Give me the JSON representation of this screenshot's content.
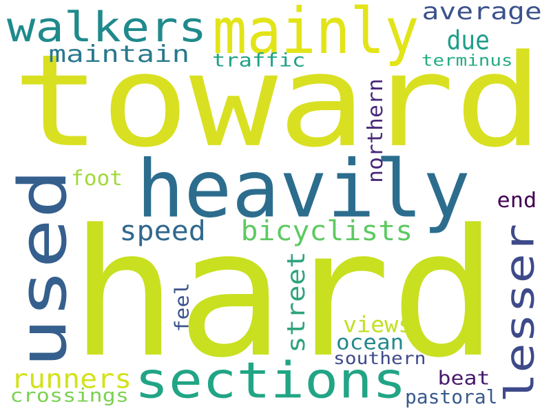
{
  "words": [
    {
      "id": "toward",
      "text": "toward",
      "color": "#d9e021",
      "rotated": false
    },
    {
      "id": "hard",
      "text": "hard",
      "color": "#c8e020",
      "rotated": false
    },
    {
      "id": "heavily",
      "text": "heavily",
      "color": "#2c6d8e",
      "rotated": false
    },
    {
      "id": "used",
      "text": "used",
      "color": "#355f8d",
      "rotated": true
    },
    {
      "id": "mainly",
      "text": "mainly",
      "color": "#e2e418",
      "rotated": false
    },
    {
      "id": "walkers",
      "text": "walkers",
      "color": "#1f8a8c",
      "rotated": false
    },
    {
      "id": "sections",
      "text": "sections",
      "color": "#21a585",
      "rotated": false
    },
    {
      "id": "lesser",
      "text": "lesser",
      "color": "#3e4a89",
      "rotated": true
    },
    {
      "id": "average",
      "text": "average",
      "color": "#3b528b",
      "rotated": false
    },
    {
      "id": "due",
      "text": "due",
      "color": "#1f9e89",
      "rotated": false
    },
    {
      "id": "maintain",
      "text": "maintain",
      "color": "#2a788e",
      "rotated": false
    },
    {
      "id": "traffic",
      "text": "traffic",
      "color": "#1fa187",
      "rotated": false
    },
    {
      "id": "terminus",
      "text": "terminus",
      "color": "#25ac82",
      "rotated": false
    },
    {
      "id": "northern",
      "text": "northern",
      "color": "#482878",
      "rotated": true
    },
    {
      "id": "foot",
      "text": "foot",
      "color": "#a0da39",
      "rotated": false
    },
    {
      "id": "speed",
      "text": "speed",
      "color": "#31688e",
      "rotated": false
    },
    {
      "id": "bicyclists",
      "text": "bicyclists",
      "color": "#5ec962",
      "rotated": false
    },
    {
      "id": "end",
      "text": "end",
      "color": "#440154",
      "rotated": false
    },
    {
      "id": "street",
      "text": "street",
      "color": "#2ea37e",
      "rotated": true
    },
    {
      "id": "feel",
      "text": "feel",
      "color": "#3b528b",
      "rotated": true
    },
    {
      "id": "views",
      "text": "views",
      "color": "#c2df23",
      "rotated": false
    },
    {
      "id": "ocean",
      "text": "ocean",
      "color": "#23898e",
      "rotated": false
    },
    {
      "id": "southern",
      "text": "southern",
      "color": "#3e4989",
      "rotated": false
    },
    {
      "id": "runners",
      "text": "runners",
      "color": "#d2e21b",
      "rotated": false
    },
    {
      "id": "beat",
      "text": "beat",
      "color": "#481a6c",
      "rotated": false
    },
    {
      "id": "crossings",
      "text": "crossings",
      "color": "#7ad151",
      "rotated": false
    },
    {
      "id": "pastoral",
      "text": "pastoral",
      "color": "#38598c",
      "rotated": false
    }
  ]
}
